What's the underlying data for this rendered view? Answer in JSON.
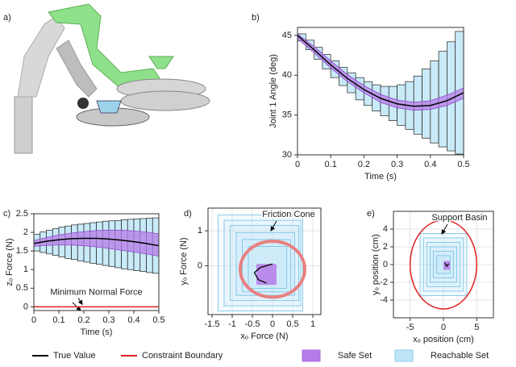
{
  "panel_labels": [
    "a)",
    "b)",
    "c)",
    "d)",
    "e)"
  ],
  "legend": [
    {
      "name": "True Value",
      "color": "#000000"
    },
    {
      "name": "Constraint Boundary",
      "color": "#e02020"
    },
    {
      "name": "Safe Set",
      "color": "#b57be8"
    },
    {
      "name": "Reachable Set",
      "color": "#bfe6f7"
    }
  ],
  "chart_data": [
    {
      "type": "interval",
      "xlabel": "Time (s)",
      "ylabel": "Joint 1 Angle (deg)",
      "xlim": [
        0,
        0.5
      ],
      "ylim": [
        30,
        46
      ],
      "xticks": [
        0,
        0.1,
        0.2,
        0.3,
        0.4,
        0.5
      ],
      "yticks": [
        30,
        35,
        40,
        45
      ],
      "x": [
        0,
        0.05,
        0.1,
        0.15,
        0.2,
        0.25,
        0.3,
        0.35,
        0.4,
        0.45,
        0.5
      ],
      "true": [
        45,
        43.2,
        41.3,
        39.6,
        38.2,
        37.1,
        36.4,
        36.1,
        36.2,
        36.8,
        37.8
      ],
      "safe_low": [
        44.6,
        42.8,
        40.9,
        39.2,
        37.8,
        36.6,
        35.9,
        35.6,
        35.7,
        36.2,
        37.1
      ],
      "safe_high": [
        45.2,
        43.6,
        41.8,
        40.1,
        38.7,
        37.6,
        36.9,
        36.6,
        36.8,
        37.5,
        38.4
      ],
      "bins": [
        0,
        0.025,
        0.05,
        0.075,
        0.1,
        0.125,
        0.15,
        0.175,
        0.2,
        0.225,
        0.25,
        0.275,
        0.3,
        0.325,
        0.35,
        0.375,
        0.4,
        0.425,
        0.45,
        0.475,
        0.5
      ],
      "reach_low": [
        44.3,
        43.2,
        42.0,
        40.8,
        39.7,
        38.7,
        37.8,
        36.9,
        36.2,
        35.5,
        34.9,
        34.3,
        33.7,
        33.2,
        32.6,
        32.1,
        31.5,
        31.0,
        30.5,
        30.1
      ],
      "reach_high": [
        45.2,
        44.4,
        43.5,
        42.6,
        41.8,
        41.0,
        40.3,
        39.7,
        39.2,
        38.8,
        38.6,
        38.6,
        38.8,
        39.2,
        39.9,
        40.8,
        41.8,
        43.0,
        44.2,
        45.5
      ]
    },
    {
      "type": "interval",
      "xlabel": "Time (s)",
      "ylabel": "zₒ Force (N)",
      "xlim": [
        0,
        0.5
      ],
      "ylim": [
        -0.1,
        2.5
      ],
      "xticks": [
        0,
        0.1,
        0.2,
        0.3,
        0.4,
        0.5
      ],
      "yticks": [
        0,
        0.5,
        1,
        1.5,
        2,
        2.5
      ],
      "x": [
        0,
        0.05,
        0.1,
        0.15,
        0.2,
        0.25,
        0.3,
        0.35,
        0.4,
        0.45,
        0.5
      ],
      "true": [
        1.7,
        1.76,
        1.8,
        1.83,
        1.84,
        1.84,
        1.82,
        1.79,
        1.75,
        1.7,
        1.64
      ],
      "safe_low": [
        1.62,
        1.65,
        1.66,
        1.66,
        1.64,
        1.61,
        1.57,
        1.52,
        1.47,
        1.42,
        1.36
      ],
      "safe_high": [
        1.78,
        1.86,
        1.93,
        1.98,
        2.02,
        2.05,
        2.06,
        2.06,
        2.04,
        2.01,
        1.96
      ],
      "bins": [
        0,
        0.025,
        0.05,
        0.075,
        0.1,
        0.125,
        0.15,
        0.175,
        0.2,
        0.225,
        0.25,
        0.275,
        0.3,
        0.325,
        0.35,
        0.375,
        0.4,
        0.425,
        0.45,
        0.475,
        0.5
      ],
      "reach_low": [
        1.5,
        1.46,
        1.42,
        1.38,
        1.34,
        1.3,
        1.27,
        1.23,
        1.2,
        1.17,
        1.14,
        1.11,
        1.08,
        1.05,
        1.02,
        1.0,
        0.97,
        0.95,
        0.92,
        0.9
      ],
      "reach_high": [
        1.95,
        2.01,
        2.06,
        2.1,
        2.14,
        2.17,
        2.2,
        2.22,
        2.24,
        2.26,
        2.28,
        2.3,
        2.31,
        2.32,
        2.34,
        2.35,
        2.36,
        2.37,
        2.38,
        2.39
      ],
      "constraint": 0,
      "annotation": "Minimum Normal Force"
    },
    {
      "type": "set2d",
      "xlabel": "xₒ Force (N)",
      "ylabel": "yₒ Force (N)",
      "grid": true,
      "xlim": [
        -1.6,
        1.2
      ],
      "ylim": [
        -1.4,
        1.65
      ],
      "xticks": [
        -1.5,
        -1,
        -0.5,
        0,
        0.5,
        1
      ],
      "yticks": [
        0,
        1
      ],
      "reach_rects": [
        [
          -1.35,
          0.75,
          -1.3,
          1.45
        ],
        [
          -1.2,
          0.7,
          -1.15,
          1.3
        ],
        [
          -1.05,
          0.65,
          -1.0,
          1.15
        ],
        [
          -0.9,
          0.55,
          -0.85,
          0.95
        ],
        [
          -0.75,
          0.45,
          -0.75,
          0.75
        ],
        [
          -0.6,
          0.35,
          -0.65,
          0.55
        ]
      ],
      "safe_rect": [
        -0.4,
        0.1,
        -0.55,
        0.05
      ],
      "true_x": [
        0.0,
        -0.3,
        -0.45,
        -0.35,
        -0.15
      ],
      "true_y": [
        0.05,
        -0.05,
        -0.2,
        -0.4,
        -0.5
      ],
      "circle_center": [
        0,
        -0.1
      ],
      "circle_radius": 0.8,
      "circle_color": "#e88080",
      "annotation": "Friction Cone"
    },
    {
      "type": "set2d",
      "xlabel": "xₒ position (cm)",
      "ylabel": "yₒ position (cm)",
      "grid": true,
      "xlim": [
        -7.5,
        7.5
      ],
      "ylim": [
        -6,
        6
      ],
      "xticks": [
        -5,
        0,
        5
      ],
      "yticks": [
        -4,
        -2,
        0,
        2,
        4
      ],
      "reach_rects": [
        [
          -3.5,
          3.5,
          -3.5,
          3.5
        ],
        [
          -3,
          3,
          -3,
          3
        ],
        [
          -2.5,
          2.5,
          -2.5,
          2.5
        ],
        [
          -2,
          2,
          -2,
          2
        ],
        [
          -1.5,
          1.5,
          -1.5,
          1.5
        ],
        [
          -1,
          1,
          -1,
          1
        ]
      ],
      "safe_rect": [
        0,
        1,
        -0.6,
        0.4
      ],
      "true_x": [
        0.2,
        0.5,
        0.8
      ],
      "true_y": [
        0.2,
        -0.2,
        0.1
      ],
      "circle_center": [
        0,
        0
      ],
      "circle_radius": 5,
      "circle_color": "#e02020",
      "annotation": "Support Basin"
    }
  ]
}
